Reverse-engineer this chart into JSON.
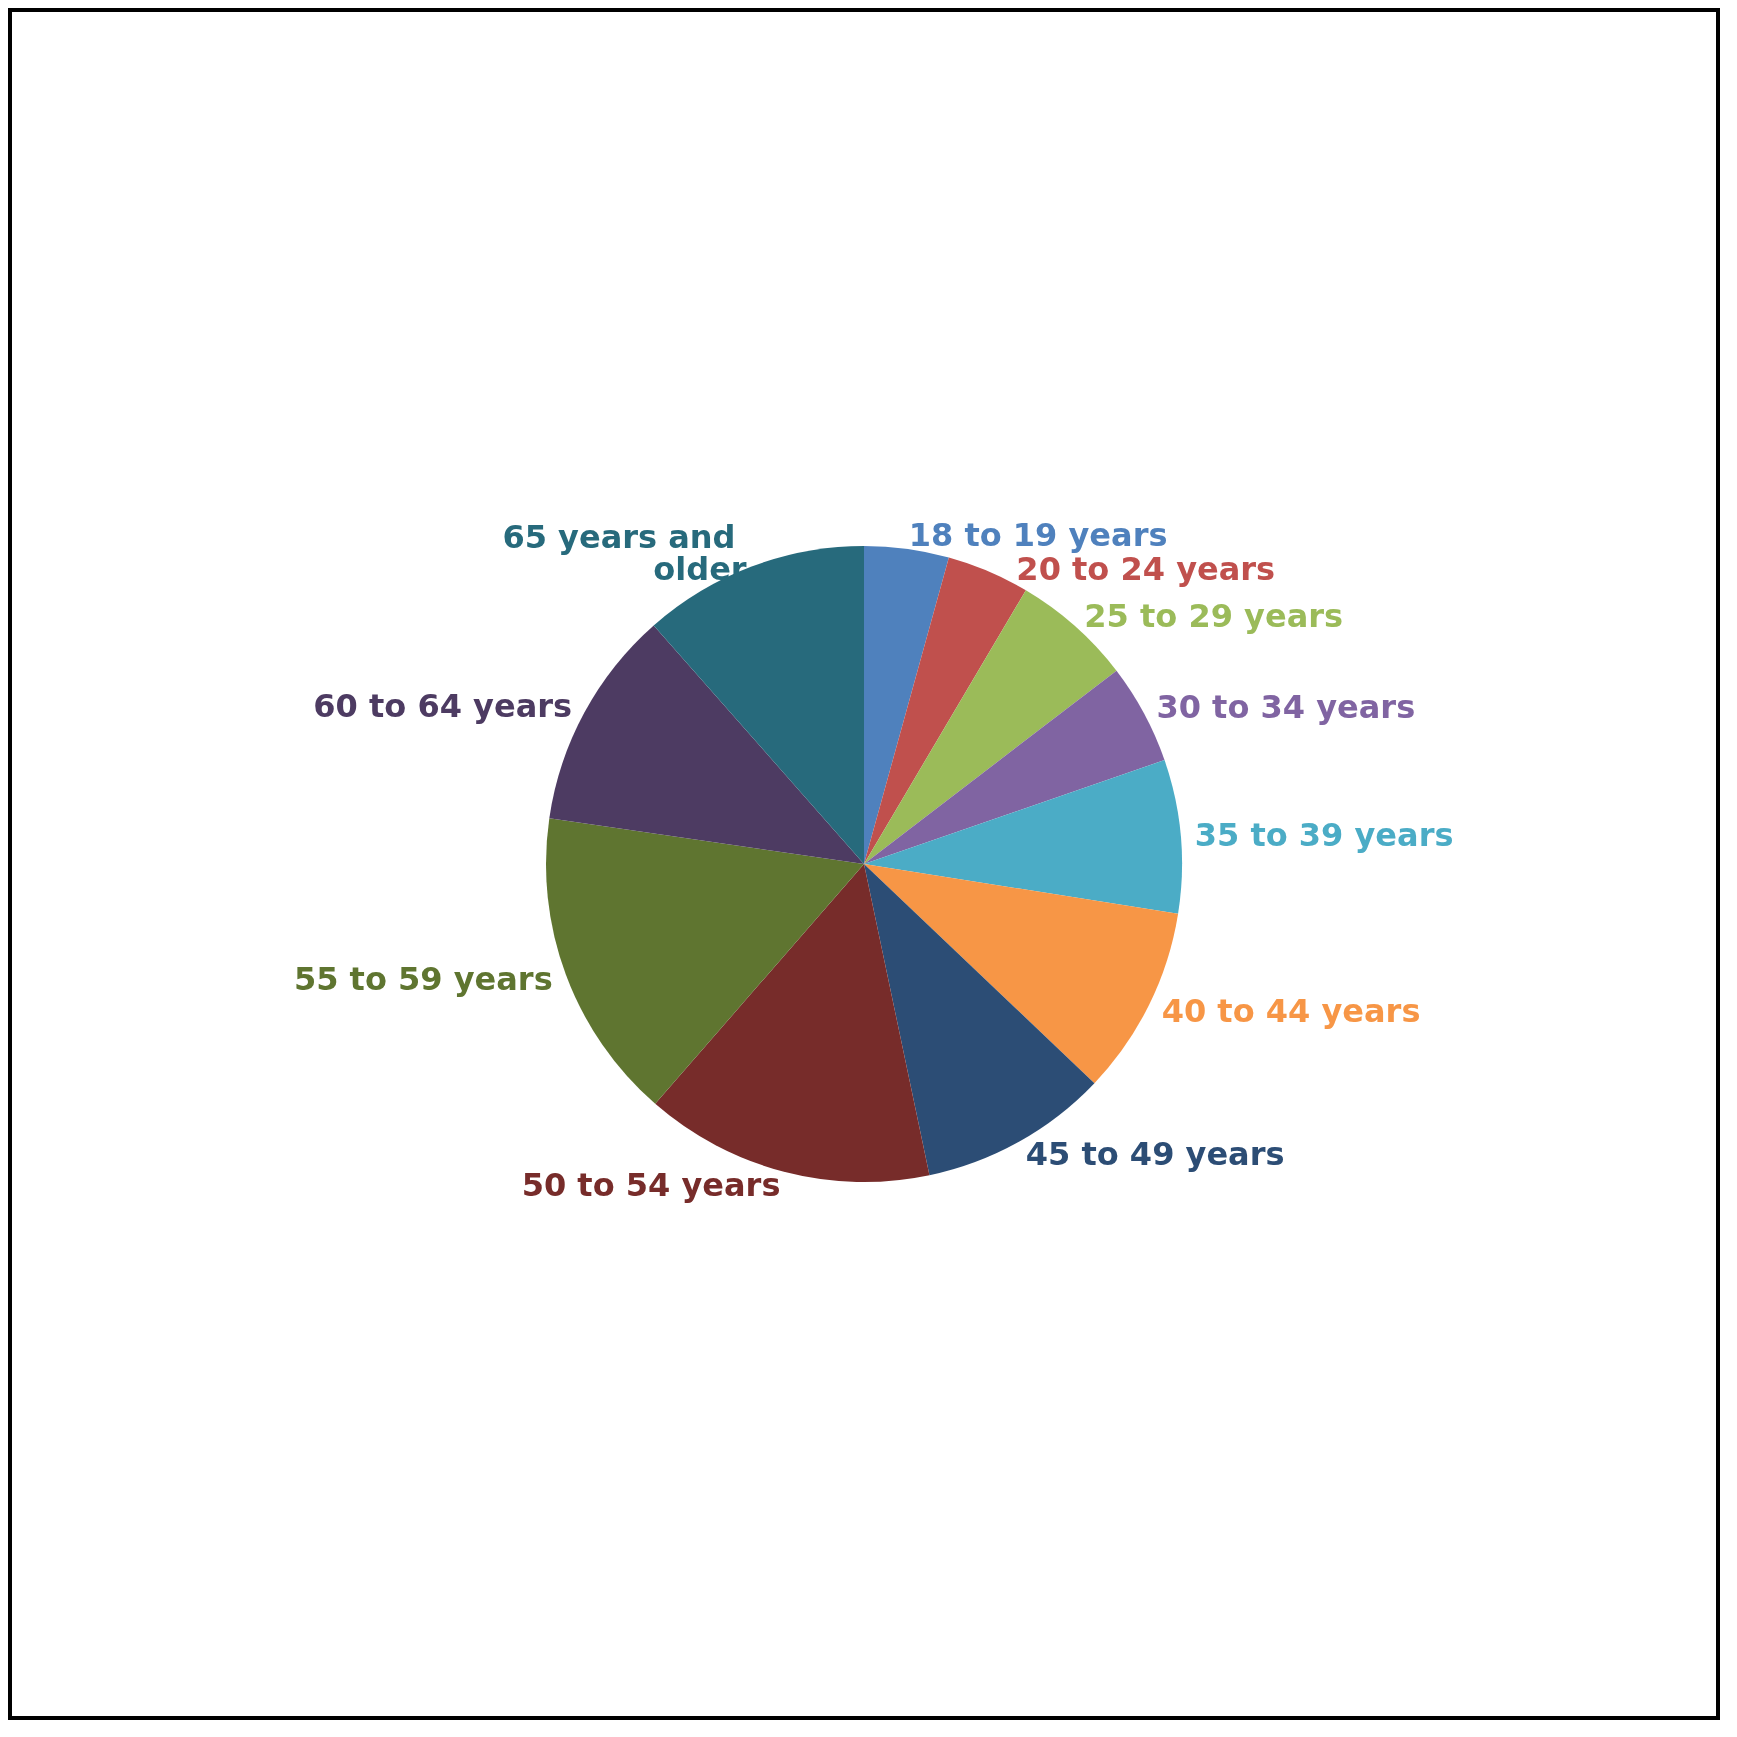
{
  "chart_data": {
    "type": "pie",
    "categories": [
      "18 to 19 years",
      "20 to 24 years",
      "25 to 29 years",
      "30 to 34 years",
      "35 to 39 years",
      "40 to 44 years",
      "45 to 49 years",
      "50 to 54 years",
      "55 to 59 years",
      "60 to 64 years",
      "65 years and older"
    ],
    "values": [
      4.3,
      4.2,
      6.1,
      5.1,
      7.8,
      9.6,
      9.6,
      14.7,
      15.9,
      11.2,
      11.5
    ],
    "colors": [
      "#4f81bd",
      "#c0504d",
      "#9bbb59",
      "#8064a2",
      "#4bacc6",
      "#f79646",
      "#2c4d75",
      "#772c2a",
      "#5f7530",
      "#4d3b62",
      "#276a7c"
    ],
    "legend": false
  }
}
